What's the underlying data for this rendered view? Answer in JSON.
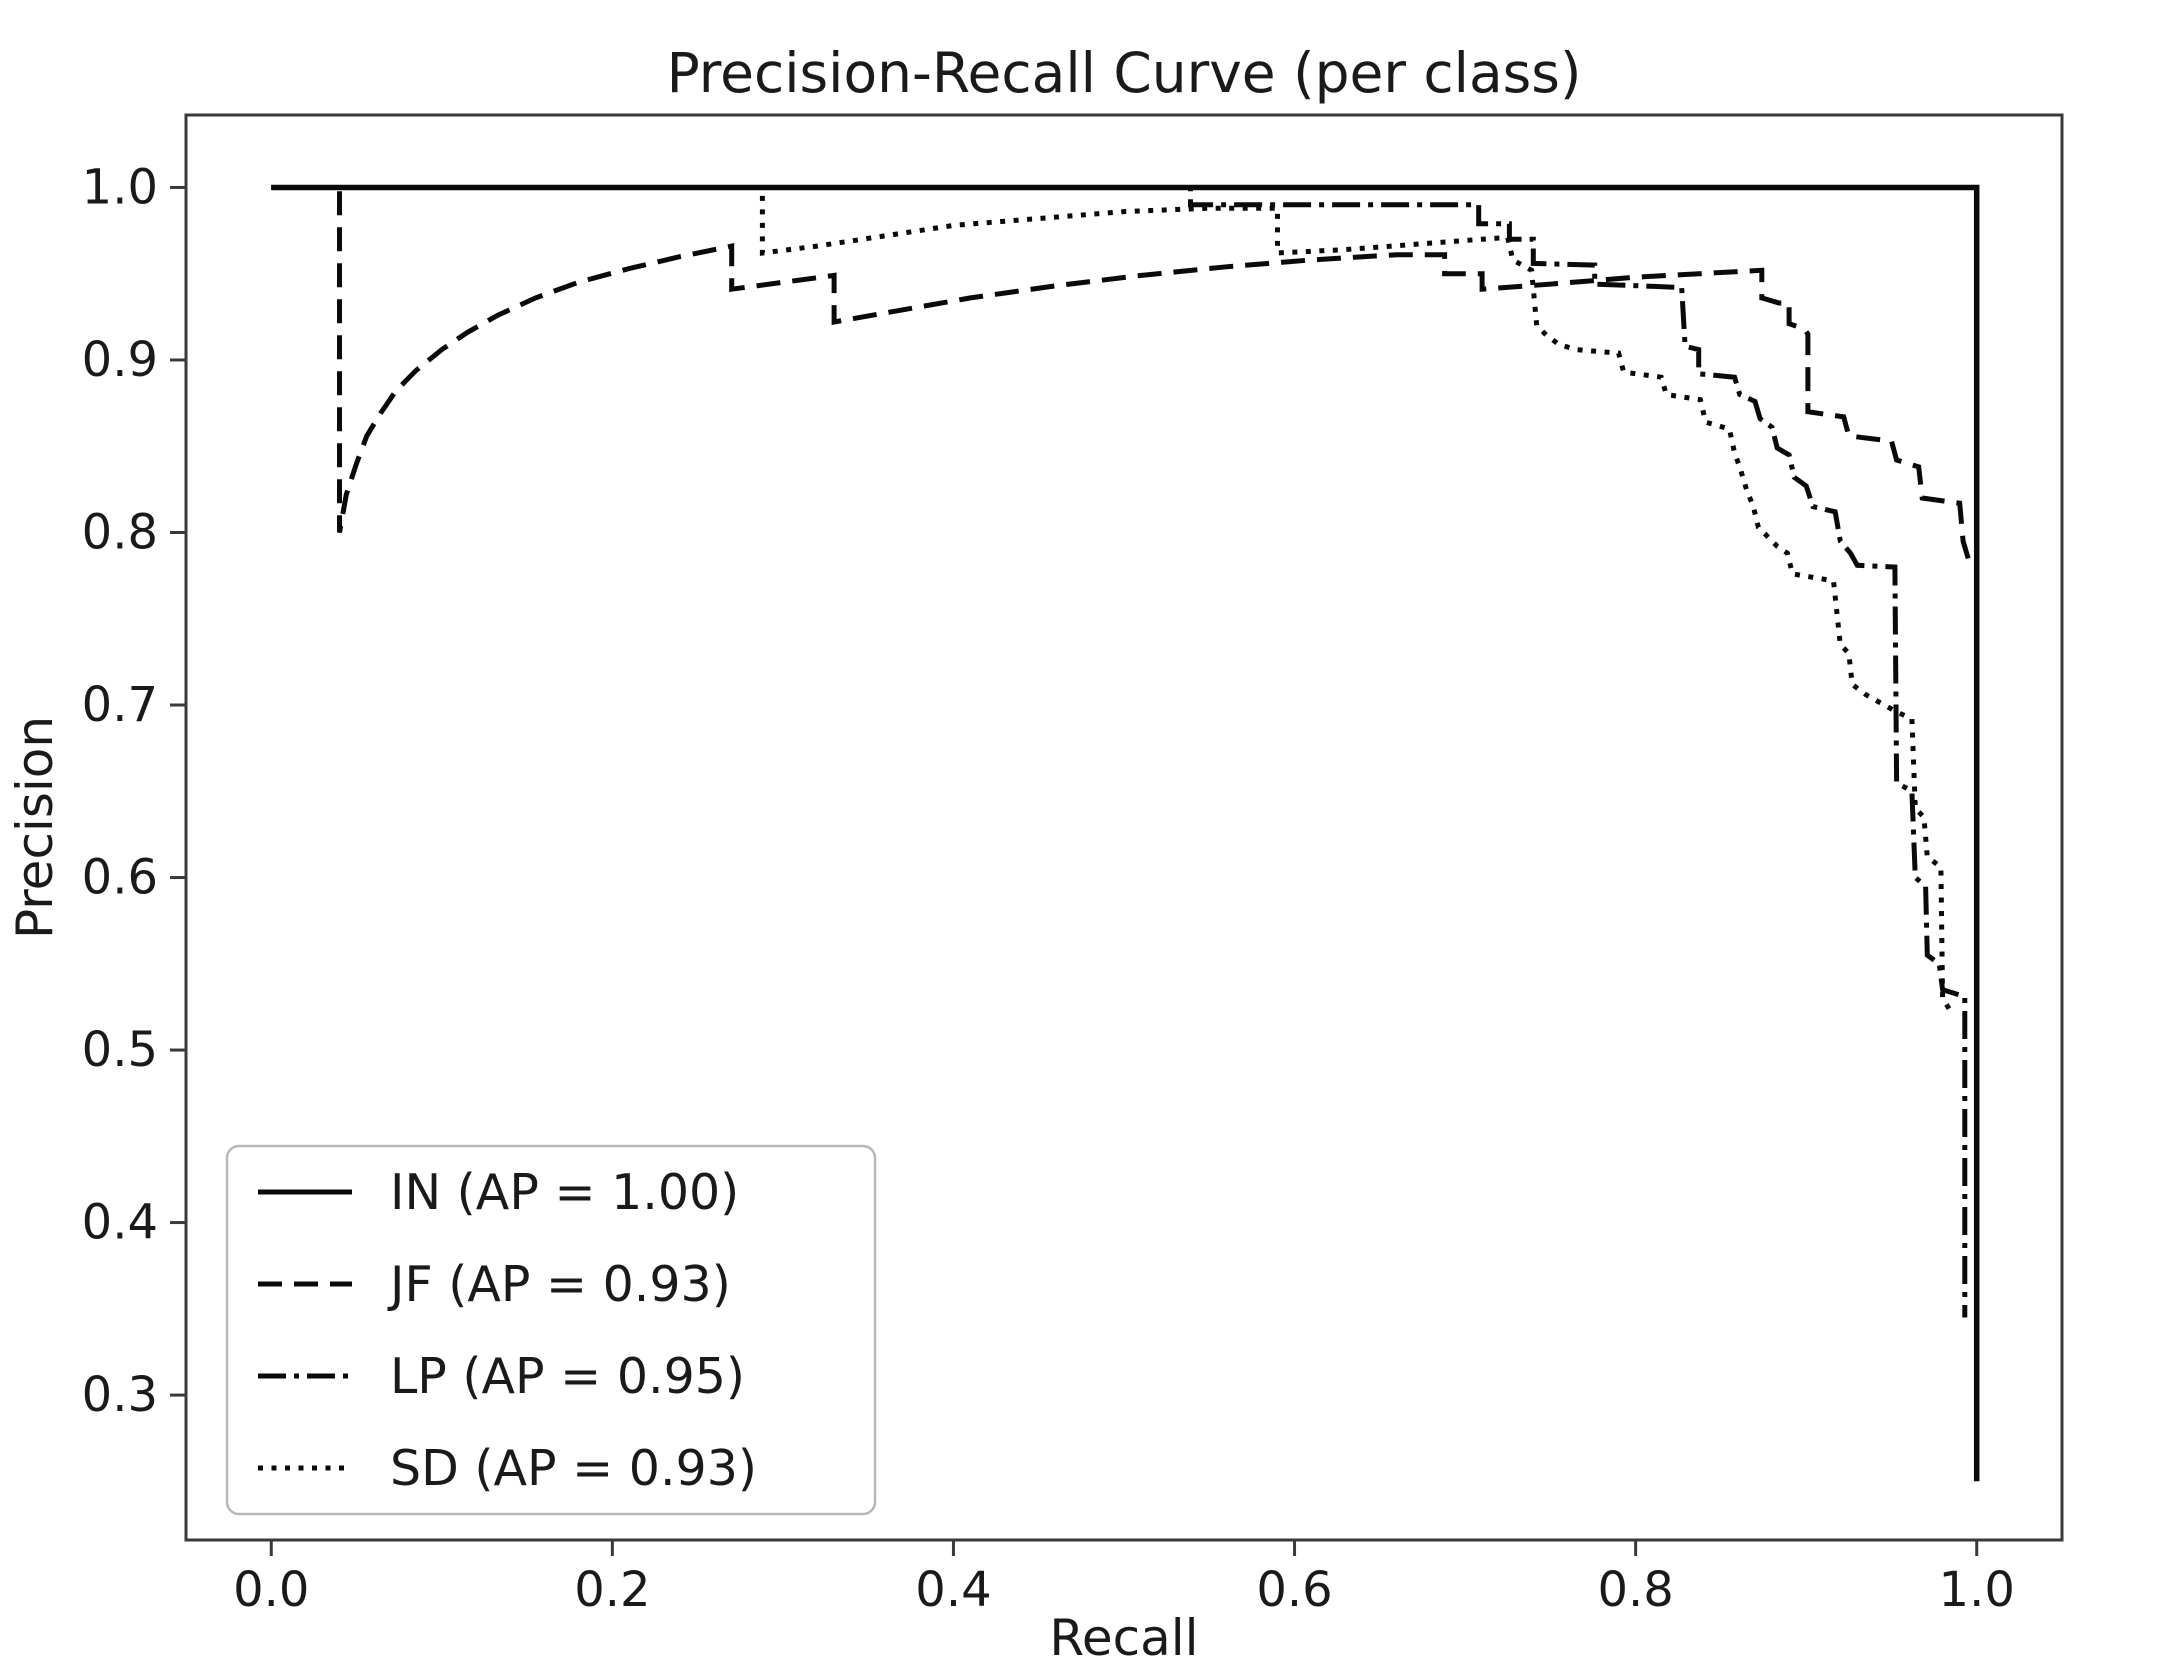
{
  "figure": {
    "background": "#ffffff",
    "line_color": "#0a0a0a",
    "spine_color": "#3a3a3a",
    "legend_border_color": "#b8b8b8"
  },
  "chart_data": {
    "type": "line",
    "title": "Precision-Recall Curve (per class)",
    "xlabel": "Recall",
    "ylabel": "Precision",
    "xlim": [
      -0.05,
      1.05
    ],
    "ylim": [
      0.216,
      1.042
    ],
    "x_ticks": [
      "0.0",
      "0.2",
      "0.4",
      "0.6",
      "0.8",
      "1.0"
    ],
    "x_tick_values": [
      0.0,
      0.2,
      0.4,
      0.6,
      0.8,
      1.0
    ],
    "y_ticks": [
      "0.3",
      "0.4",
      "0.5",
      "0.6",
      "0.7",
      "0.8",
      "0.9",
      "1.0"
    ],
    "y_tick_values": [
      0.3,
      0.4,
      0.5,
      0.6,
      0.7,
      0.8,
      0.9,
      1.0
    ],
    "grid": false,
    "legend_position": "lower left",
    "series": [
      {
        "name": "IN (AP = 1.00)",
        "class": "IN",
        "ap": 1.0,
        "style": "solid",
        "points": [
          [
            0.0,
            1.0
          ],
          [
            1.0,
            1.0
          ],
          [
            1.0,
            0.25
          ]
        ]
      },
      {
        "name": "JF (AP = 0.93)",
        "class": "JF",
        "ap": 0.93,
        "style": "dashed",
        "points": [
          [
            0.0,
            1.0
          ],
          [
            0.04,
            1.0
          ],
          [
            0.04,
            0.8
          ],
          [
            0.044,
            0.822
          ],
          [
            0.05,
            0.84
          ],
          [
            0.056,
            0.856
          ],
          [
            0.064,
            0.869
          ],
          [
            0.073,
            0.882
          ],
          [
            0.085,
            0.894
          ],
          [
            0.1,
            0.906
          ],
          [
            0.115,
            0.916
          ],
          [
            0.133,
            0.926
          ],
          [
            0.155,
            0.936
          ],
          [
            0.18,
            0.945
          ],
          [
            0.21,
            0.953
          ],
          [
            0.24,
            0.96
          ],
          [
            0.27,
            0.966
          ],
          [
            0.27,
            0.941
          ],
          [
            0.3,
            0.945
          ],
          [
            0.33,
            0.949
          ],
          [
            0.33,
            0.922
          ],
          [
            0.37,
            0.929
          ],
          [
            0.41,
            0.936
          ],
          [
            0.46,
            0.943
          ],
          [
            0.51,
            0.949
          ],
          [
            0.56,
            0.954
          ],
          [
            0.61,
            0.958
          ],
          [
            0.66,
            0.961
          ],
          [
            0.688,
            0.961
          ],
          [
            0.688,
            0.95
          ],
          [
            0.71,
            0.95
          ],
          [
            0.71,
            0.941
          ],
          [
            0.75,
            0.944
          ],
          [
            0.8,
            0.948
          ],
          [
            0.874,
            0.952
          ],
          [
            0.874,
            0.936
          ],
          [
            0.884,
            0.933
          ],
          [
            0.89,
            0.933
          ],
          [
            0.89,
            0.921
          ],
          [
            0.899,
            0.918
          ],
          [
            0.901,
            0.915
          ],
          [
            0.901,
            0.87
          ],
          [
            0.922,
            0.867
          ],
          [
            0.925,
            0.856
          ],
          [
            0.95,
            0.853
          ],
          [
            0.953,
            0.842
          ],
          [
            0.966,
            0.838
          ],
          [
            0.968,
            0.82
          ],
          [
            0.99,
            0.817
          ],
          [
            0.992,
            0.795
          ],
          [
            0.995,
            0.785
          ]
        ]
      },
      {
        "name": "LP (AP = 0.95)",
        "class": "LP",
        "ap": 0.95,
        "style": "dashdot",
        "points": [
          [
            0.0,
            1.0
          ],
          [
            0.539,
            1.0
          ],
          [
            0.539,
            0.99
          ],
          [
            0.708,
            0.99
          ],
          [
            0.708,
            0.979
          ],
          [
            0.726,
            0.979
          ],
          [
            0.726,
            0.97
          ],
          [
            0.74,
            0.97
          ],
          [
            0.74,
            0.956
          ],
          [
            0.776,
            0.955
          ],
          [
            0.776,
            0.944
          ],
          [
            0.827,
            0.942
          ],
          [
            0.829,
            0.908
          ],
          [
            0.837,
            0.906
          ],
          [
            0.837,
            0.892
          ],
          [
            0.858,
            0.89
          ],
          [
            0.861,
            0.88
          ],
          [
            0.87,
            0.876
          ],
          [
            0.873,
            0.866
          ],
          [
            0.88,
            0.861
          ],
          [
            0.883,
            0.849
          ],
          [
            0.89,
            0.845
          ],
          [
            0.893,
            0.832
          ],
          [
            0.9,
            0.827
          ],
          [
            0.904,
            0.815
          ],
          [
            0.917,
            0.812
          ],
          [
            0.92,
            0.795
          ],
          [
            0.926,
            0.788
          ],
          [
            0.93,
            0.781
          ],
          [
            0.952,
            0.78
          ],
          [
            0.953,
            0.655
          ],
          [
            0.962,
            0.65
          ],
          [
            0.964,
            0.6
          ],
          [
            0.97,
            0.595
          ],
          [
            0.971,
            0.555
          ],
          [
            0.978,
            0.55
          ],
          [
            0.98,
            0.535
          ],
          [
            0.993,
            0.531
          ],
          [
            0.993,
            0.345
          ]
        ]
      },
      {
        "name": "SD (AP = 0.93)",
        "class": "SD",
        "ap": 0.93,
        "style": "dotted",
        "points": [
          [
            0.0,
            1.0
          ],
          [
            0.288,
            1.0
          ],
          [
            0.288,
            0.962
          ],
          [
            0.32,
            0.966
          ],
          [
            0.36,
            0.972
          ],
          [
            0.4,
            0.978
          ],
          [
            0.45,
            0.982
          ],
          [
            0.5,
            0.986
          ],
          [
            0.55,
            0.988
          ],
          [
            0.59,
            0.988
          ],
          [
            0.59,
            0.962
          ],
          [
            0.63,
            0.964
          ],
          [
            0.67,
            0.967
          ],
          [
            0.71,
            0.97
          ],
          [
            0.725,
            0.971
          ],
          [
            0.728,
            0.958
          ],
          [
            0.739,
            0.952
          ],
          [
            0.742,
            0.92
          ],
          [
            0.748,
            0.914
          ],
          [
            0.755,
            0.909
          ],
          [
            0.765,
            0.906
          ],
          [
            0.79,
            0.904
          ],
          [
            0.793,
            0.893
          ],
          [
            0.815,
            0.89
          ],
          [
            0.818,
            0.88
          ],
          [
            0.838,
            0.877
          ],
          [
            0.841,
            0.864
          ],
          [
            0.855,
            0.86
          ],
          [
            0.858,
            0.846
          ],
          [
            0.861,
            0.838
          ],
          [
            0.865,
            0.825
          ],
          [
            0.869,
            0.815
          ],
          [
            0.872,
            0.803
          ],
          [
            0.877,
            0.798
          ],
          [
            0.883,
            0.792
          ],
          [
            0.889,
            0.788
          ],
          [
            0.892,
            0.776
          ],
          [
            0.916,
            0.772
          ],
          [
            0.92,
            0.735
          ],
          [
            0.925,
            0.73
          ],
          [
            0.927,
            0.712
          ],
          [
            0.935,
            0.706
          ],
          [
            0.944,
            0.701
          ],
          [
            0.953,
            0.696
          ],
          [
            0.962,
            0.692
          ],
          [
            0.964,
            0.64
          ],
          [
            0.969,
            0.635
          ],
          [
            0.971,
            0.612
          ],
          [
            0.979,
            0.606
          ],
          [
            0.98,
            0.53
          ],
          [
            0.985,
            0.522
          ]
        ]
      }
    ]
  }
}
